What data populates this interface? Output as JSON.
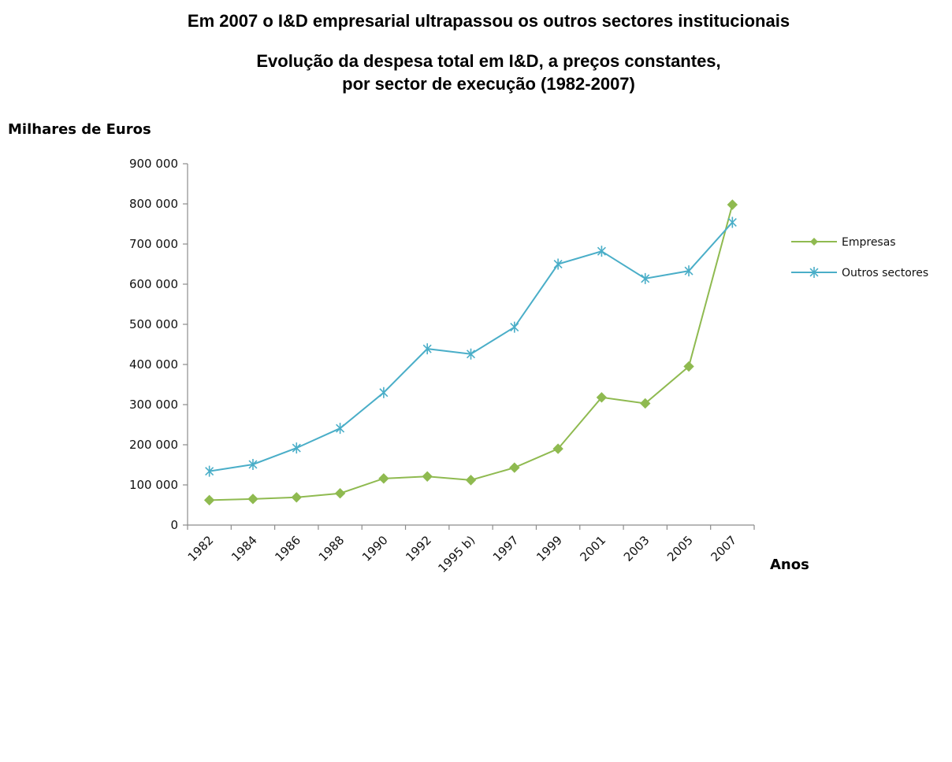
{
  "headline": "Em 2007 o I&D empresarial ultrapassou os outros sectores institucionais",
  "subtitle_line1": "Evolução da despesa total em I&D, a preços constantes,",
  "subtitle_line2": "por sector de execução (1982-2007)",
  "chart_data": {
    "type": "line",
    "title": "Evolução da despesa total em I&D, a preços constantes, por sector de execução (1982-2007)",
    "xlabel": "Anos",
    "ylabel": "Milhares de Euros",
    "categories": [
      "1982",
      "1984",
      "1986",
      "1988",
      "1990",
      "1992",
      "1995 b)",
      "1997",
      "1999",
      "2001",
      "2003",
      "2005",
      "2007"
    ],
    "ylim": [
      0,
      900000
    ],
    "yticks": [
      0,
      100000,
      200000,
      300000,
      400000,
      500000,
      600000,
      700000,
      800000,
      900000
    ],
    "ytick_labels": [
      "0",
      "100 000",
      "200 000",
      "300 000",
      "400 000",
      "500 000",
      "600 000",
      "700 000",
      "800 000",
      "900 000"
    ],
    "grid": false,
    "legend_position": "right",
    "series": [
      {
        "name": "Empresas",
        "color": "#8fba50",
        "marker": "diamond",
        "values": [
          62000,
          65000,
          69000,
          79000,
          116000,
          121000,
          112000,
          143000,
          190000,
          318000,
          303000,
          395000,
          798000
        ]
      },
      {
        "name": "Outros sectores",
        "color": "#4aaec8",
        "marker": "asterisk",
        "values": [
          134000,
          151000,
          192000,
          241000,
          330000,
          439000,
          426000,
          493000,
          650000,
          682000,
          614000,
          633000,
          754000
        ]
      }
    ]
  }
}
